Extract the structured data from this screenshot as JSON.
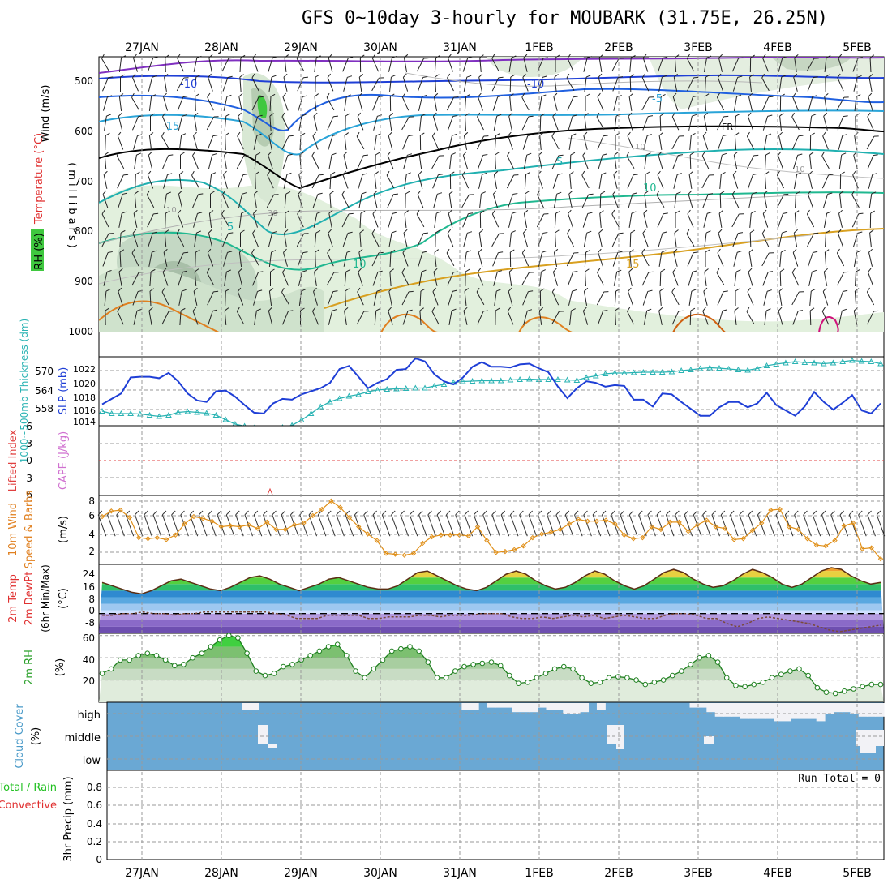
{
  "title": "GFS 0~10day 3-hourly for MOUBARK (31.75E, 26.25N)",
  "colors": {
    "temp_line": "#5a2e14",
    "blue": "#1f3fd6",
    "cyan": "#2ab3b3",
    "wind_orange": "#e0901a",
    "rh_green": "#2aa02a",
    "cloud": "#6aa8d4",
    "cloud_gap": "#f2f2f6",
    "lifted": "#e04040",
    "cape": "#d070d0",
    "precip_green": "#20c020",
    "precip_red": "#e03030",
    "purple_label": "#7020d0"
  },
  "dates": [
    "27JAN",
    "28JAN",
    "29JAN",
    "30JAN",
    "31JAN",
    "1FEB",
    "2FEB",
    "3FEB",
    "4FEB",
    "5FEB"
  ],
  "panels": {
    "upper": {
      "y_label_1": "Wind (m/s)",
      "y_label_2": "Temperature (°C)",
      "y_label_3": "RH (%)",
      "y_label_4": "(millibars)",
      "y_ticks": [
        "500",
        "600",
        "700",
        "800",
        "900",
        "1000"
      ],
      "contour_labels": [
        "-10",
        "-10",
        "-5",
        "-15",
        "FR",
        "5",
        "10",
        "5",
        "10",
        "15",
        "10",
        "10",
        "30",
        "10"
      ]
    },
    "slp": {
      "y_label_left": "1000~500mb Thickness (dm)",
      "y_label_right": "SLP (mb)",
      "left_ticks": [
        "570",
        "564",
        "558"
      ],
      "right_ticks": [
        "1022",
        "1020",
        "1018",
        "1016",
        "1014"
      ]
    },
    "cape": {
      "y_label_1": "Lifted Index",
      "y_label_2": "CAPE (J/kg)",
      "y_ticks": [
        "-6",
        "-3",
        "0",
        "3",
        "6"
      ]
    },
    "wind10": {
      "y_label_1": "10m Wind",
      "y_label_2": "Speed & Barbs",
      "y_label_3": "(m/s)",
      "y_ticks": [
        "8",
        "6",
        "4",
        "2"
      ]
    },
    "temp2m": {
      "y_label_1": "2m Temp",
      "y_label_2": "2m DewPt",
      "y_label_3": "(6hr Min/Max)",
      "y_label_4": "(°C)",
      "y_ticks": [
        "24",
        "16",
        "8",
        "0",
        "-8"
      ]
    },
    "rh2m": {
      "y_label_1": "2m RH",
      "y_label_2": "(%)",
      "y_ticks": [
        "60",
        "40",
        "20"
      ]
    },
    "cloud": {
      "y_label_1": "Cloud Cover",
      "y_label_2": "(%)",
      "levels": [
        "high",
        "middle",
        "low"
      ]
    },
    "precip": {
      "y_label_1": "Total / Rain",
      "y_label_2": "Convective",
      "y_label_3": "3hr Precip (mm)",
      "y_ticks": [
        "0.8",
        "0.6",
        "0.4",
        "0.2",
        "0"
      ],
      "run_total": "Run Total = 0"
    }
  },
  "chart_data": [
    {
      "type": "line",
      "title": "1000~500mb Thickness / SLP",
      "series": [
        {
          "name": "SLP (mb)",
          "values": [
            1016.8,
            1017.5,
            1018.2,
            1020.3,
            1020.4,
            1020.4,
            1020.2,
            1020.9,
            1019.8,
            1018.2,
            1017.3,
            1017.1,
            1018.5,
            1018.6,
            1017.8,
            1016.7,
            1015.7,
            1015.6,
            1016.9,
            1017.5,
            1017.4,
            1018.1,
            1018.5,
            1018.9,
            1019.6,
            1021.4,
            1021.8,
            1020.4,
            1018.9,
            1019.6,
            1020.1,
            1021.3,
            1021.4,
            1022.8,
            1022.4,
            1020.7,
            1019.8,
            1019.4,
            1020.3,
            1021.7,
            1022.3,
            1021.7,
            1021.7,
            1021.6,
            1022.0,
            1022.1,
            1021.5,
            1021.0,
            1019.1,
            1017.6,
            1018.9,
            1019.8,
            1019.6,
            1019.1,
            1019.3,
            1019.2,
            1017.4,
            1017.4,
            1016.5,
            1018.2,
            1018.1,
            1017.1,
            1016.2,
            1015.3,
            1015.3,
            1016.4,
            1017.1,
            1017.1,
            1016.4,
            1016.9,
            1018.3,
            1016.7,
            1016.0,
            1015.3,
            1016.5,
            1018.4,
            1017.1,
            1016.1,
            1017.0,
            1018.0,
            1016.0,
            1015.6,
            1016.9
          ]
        },
        {
          "name": "1000-500mb Thickness (dm)",
          "values": [
            558.6,
            558.0,
            558.0,
            558.0,
            557.9,
            557.6,
            557.3,
            557.6,
            558.3,
            558.5,
            558.3,
            558.1,
            557.6,
            556.5,
            555.4,
            554.9,
            554.5,
            554.2,
            554.3,
            554.6,
            555.1,
            556.4,
            558.0,
            559.7,
            560.9,
            561.7,
            562.3,
            562.7,
            563.4,
            563.8,
            564.0,
            564.1,
            564.2,
            564.3,
            564.3,
            564.8,
            565.2,
            565.7,
            565.9,
            566.0,
            566.1,
            566.1,
            566.1,
            566.3,
            566.4,
            566.5,
            566.4,
            566.4,
            566.4,
            566.3,
            566.2,
            566.9,
            567.3,
            567.8,
            568.0,
            568.0,
            568.1,
            568.2,
            568.2,
            568.2,
            568.3,
            568.6,
            568.8,
            569.1,
            569.3,
            569.2,
            569.0,
            568.8,
            568.7,
            569.1,
            569.8,
            570.2,
            570.5,
            570.8,
            570.6,
            570.5,
            570.3,
            570.5,
            570.8,
            571.1,
            570.9,
            570.8,
            570.3
          ]
        }
      ],
      "ylim_slp": [
        1014,
        1023
      ],
      "ylim_thickness": [
        555,
        572
      ]
    },
    {
      "type": "line",
      "title": "Lifted Index / CAPE",
      "series": [
        {
          "name": "Lifted Index",
          "values": [
            0
          ]
        }
      ],
      "ylim": [
        -6,
        6
      ]
    },
    {
      "type": "line",
      "title": "10m Wind Speed",
      "series": [
        {
          "name": "10m Wind Speed (m/s)",
          "values": [
            6.2,
            6.8,
            6.9,
            6.1,
            3.9,
            3.8,
            3.9,
            3.7,
            4.2,
            5.4,
            6.2,
            6.0,
            5.7,
            5.1,
            5.2,
            5.1,
            5.3,
            4.9,
            5.6,
            4.8,
            4.8,
            5.3,
            5.5,
            6.3,
            7.0,
            7.9,
            7.2,
            6.1,
            5.1,
            4.3,
            3.6,
            2.2,
            2.1,
            2.0,
            2.2,
            3.3,
            4.0,
            4.2,
            4.2,
            4.2,
            4.1,
            5.1,
            3.6,
            2.3,
            2.4,
            2.6,
            3.0,
            3.9,
            4.3,
            4.5,
            4.8,
            5.4,
            5.9,
            5.7,
            5.7,
            5.8,
            5.4,
            4.2,
            3.8,
            3.9,
            5.1,
            4.8,
            5.6,
            5.6,
            4.6,
            5.3,
            5.8,
            5.1,
            4.9,
            3.7,
            3.8,
            4.7,
            5.5,
            6.9,
            7.0,
            5.1,
            4.8,
            3.8,
            3.1,
            3.0,
            3.6,
            5.2,
            5.5,
            2.7,
            2.8,
            1.6
          ]
        }
      ],
      "ylim": [
        1,
        8.5
      ]
    },
    {
      "type": "area",
      "title": "2m Temp / 2m DewPt",
      "series": [
        {
          "name": "2m Temp (°C)",
          "values": [
            19,
            17,
            15,
            13,
            12,
            14,
            17,
            20,
            21,
            19,
            17,
            15,
            14,
            16,
            19,
            22,
            23,
            21,
            18,
            16,
            14,
            16,
            18,
            21,
            22,
            20,
            18,
            16,
            15,
            15,
            17,
            21,
            25,
            26,
            23,
            20,
            17,
            15,
            14,
            16,
            20,
            24,
            26,
            24,
            20,
            17,
            15,
            16,
            19,
            23,
            26,
            24,
            20,
            17,
            15,
            17,
            21,
            25,
            27,
            25,
            21,
            18,
            16,
            17,
            20,
            24,
            27,
            25,
            22,
            18,
            16,
            18,
            22,
            26,
            28,
            27,
            23,
            20,
            18,
            19
          ]
        },
        {
          "name": "2m DewPt (°C)",
          "values": [
            -1,
            -1,
            0,
            0,
            1,
            0,
            0,
            -1,
            0,
            0,
            1,
            1,
            1,
            1,
            1,
            1,
            1,
            0,
            -1,
            -3,
            -3,
            -3,
            -1,
            -1,
            -1,
            -1,
            -3,
            -3,
            -2,
            -2,
            -2,
            -1,
            -1,
            -2,
            -1,
            -1,
            -1,
            0,
            0,
            0,
            -2,
            -3,
            -3,
            -2,
            -3,
            -2,
            -1,
            -2,
            -1,
            -3,
            -2,
            -1,
            -2,
            -3,
            -3,
            -1,
            0,
            0,
            -1,
            -3,
            -3,
            -6,
            -8,
            -6,
            -3,
            -2,
            -3,
            -4,
            -5,
            -6,
            -8,
            -10,
            -11,
            -10,
            -9,
            -8,
            -7
          ]
        }
      ],
      "ylim": [
        -12,
        30
      ]
    },
    {
      "type": "area",
      "title": "2m RH",
      "series": [
        {
          "name": "2m RH (%)",
          "values": [
            26,
            30,
            38,
            38,
            42,
            44,
            42,
            38,
            33,
            34,
            40,
            44,
            50,
            56,
            60,
            58,
            44,
            28,
            24,
            26,
            32,
            34,
            38,
            42,
            46,
            50,
            52,
            42,
            28,
            22,
            30,
            38,
            46,
            48,
            50,
            46,
            36,
            22,
            22,
            28,
            32,
            34,
            35,
            36,
            33,
            24,
            17,
            18,
            22,
            26,
            30,
            32,
            30,
            22,
            17,
            18,
            22,
            23,
            22,
            20,
            16,
            18,
            20,
            24,
            28,
            34,
            40,
            42,
            36,
            22,
            15,
            14,
            16,
            18,
            22,
            25,
            28,
            30,
            24,
            13,
            9,
            8,
            10,
            12,
            14,
            16,
            16
          ]
        }
      ],
      "ylim": [
        0,
        62
      ]
    },
    {
      "type": "bar",
      "title": "Cloud Cover",
      "series": [
        {
          "name": "high",
          "values": [
            100,
            100,
            100,
            100,
            100,
            100,
            100,
            100,
            100,
            100,
            100,
            100,
            100,
            100,
            100,
            100,
            70,
            70,
            100,
            100,
            100,
            100,
            100,
            100,
            100,
            100,
            100,
            100,
            100,
            100,
            100,
            100,
            100,
            100,
            100,
            100,
            100,
            100,
            100,
            100,
            100,
            100,
            70,
            70,
            100,
            80,
            80,
            80,
            60,
            60,
            60,
            80,
            70,
            70,
            50,
            50,
            60,
            100,
            70,
            100,
            100,
            100,
            100,
            100,
            100,
            100,
            100,
            100,
            100,
            80,
            80,
            60,
            40,
            40,
            40,
            30,
            30,
            30,
            30,
            20,
            20,
            30,
            30,
            30,
            20,
            50,
            60,
            60,
            50,
            40,
            40,
            40
          ]
        }
      ],
      "ylim": [
        0,
        100
      ]
    },
    {
      "type": "bar",
      "title": "3hr Precip (mm)",
      "series": [
        {
          "name": "Total / Rain",
          "values": [
            0
          ]
        }
      ],
      "ylim": [
        0,
        0.9
      ]
    }
  ]
}
